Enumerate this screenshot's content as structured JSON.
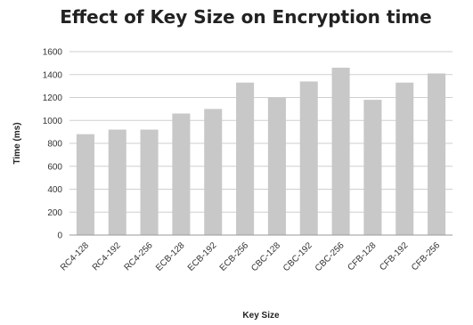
{
  "chart_data": {
    "type": "bar",
    "title": "Effect of Key Size on Encryption time",
    "xlabel": "Key Size",
    "ylabel": "Time (ms)",
    "ylim": [
      0,
      1600
    ],
    "yticks": [
      0,
      200,
      400,
      600,
      800,
      1000,
      1200,
      1400,
      1600
    ],
    "grid": true,
    "bar_color": "#c8c8c8",
    "categories": [
      "RC4-128",
      "RC4-192",
      "RC4-256",
      "ECB-128",
      "ECB-192",
      "ECB-256",
      "CBC-128",
      "CBC-192",
      "CBC-256",
      "CFB-128",
      "CFB-192",
      "CFB-256"
    ],
    "values": [
      880,
      920,
      920,
      1060,
      1100,
      1330,
      1200,
      1340,
      1460,
      1180,
      1330,
      1410
    ]
  }
}
